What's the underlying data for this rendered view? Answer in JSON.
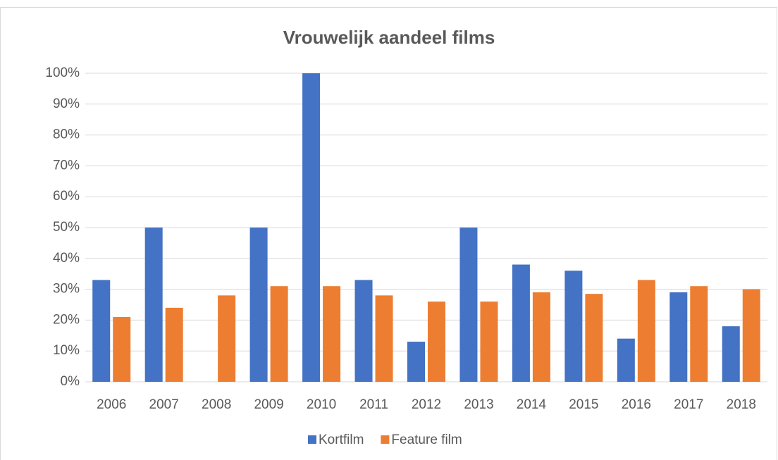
{
  "chart_data": {
    "type": "bar",
    "title": "Vrouwelijk aandeel films",
    "categories": [
      "2006",
      "2007",
      "2008",
      "2009",
      "2010",
      "2011",
      "2012",
      "2013",
      "2014",
      "2015",
      "2016",
      "2017",
      "2018"
    ],
    "series": [
      {
        "name": "Kortfilm",
        "color": "#4472c4",
        "values": [
          33,
          50,
          0,
          50,
          100,
          33,
          13,
          50,
          38,
          36,
          14,
          29,
          18
        ]
      },
      {
        "name": "Feature film",
        "color": "#ed7d31",
        "values": [
          21,
          24,
          28,
          31,
          31,
          28,
          26,
          26,
          29,
          28.5,
          33,
          31,
          30
        ]
      }
    ],
    "ylim": [
      0,
      100
    ],
    "yticks": [
      {
        "value": 0,
        "label": "0%"
      },
      {
        "value": 10,
        "label": "10%"
      },
      {
        "value": 20,
        "label": "20%"
      },
      {
        "value": 30,
        "label": "30%"
      },
      {
        "value": 40,
        "label": "40%"
      },
      {
        "value": 50,
        "label": "50%"
      },
      {
        "value": 60,
        "label": "60%"
      },
      {
        "value": 70,
        "label": "70%"
      },
      {
        "value": 80,
        "label": "80%"
      },
      {
        "value": 90,
        "label": "90%"
      },
      {
        "value": 100,
        "label": "100%"
      }
    ],
    "grid": true,
    "legend": "bottom"
  }
}
